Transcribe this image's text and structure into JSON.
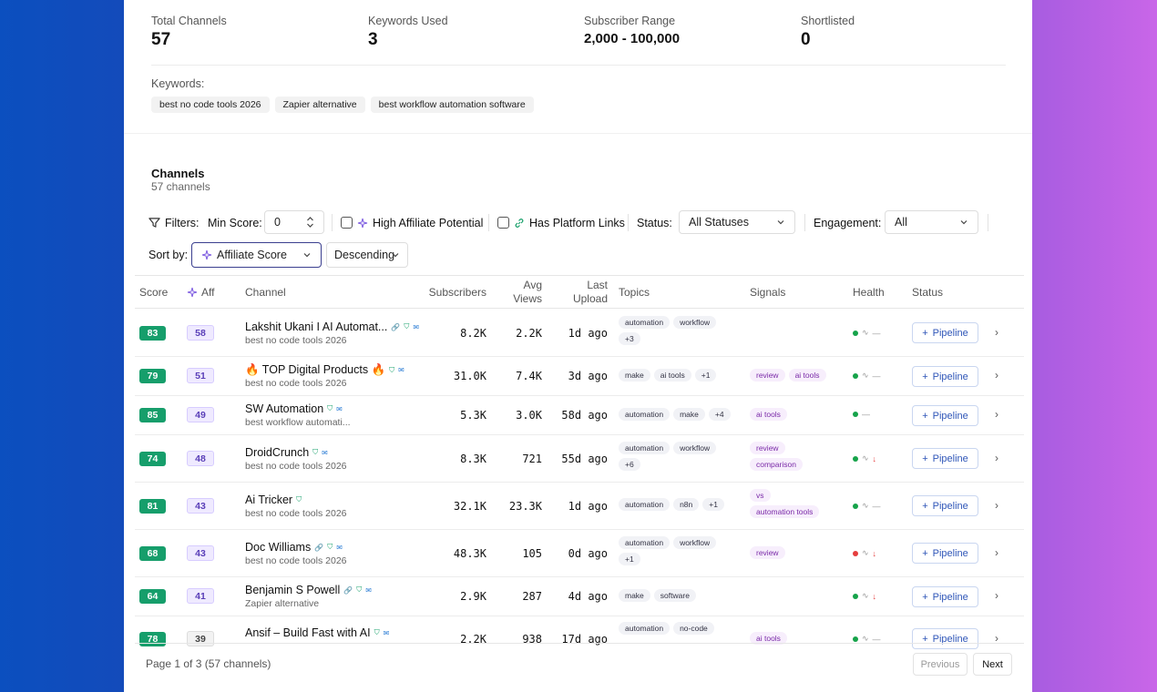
{
  "stats": [
    {
      "label": "Total Channels",
      "value": "57"
    },
    {
      "label": "Keywords Used",
      "value": "3"
    },
    {
      "label": "Subscriber Range",
      "value": "2,000 - 100,000"
    },
    {
      "label": "Shortlisted",
      "value": "0"
    }
  ],
  "keywords": {
    "label": "Keywords:",
    "items": [
      "best no code tools 2026",
      "Zapier alternative",
      "best workflow automation software"
    ]
  },
  "channels": {
    "title": "Channels",
    "subtitle": "57 channels"
  },
  "filters": {
    "label": "Filters:",
    "min_score_label": "Min Score:",
    "min_score_value": "0",
    "high_affiliate_label": "High Affiliate Potential",
    "platform_links_label": "Has Platform Links",
    "status_label": "Status:",
    "status_value": "All Statuses",
    "engagement_label": "Engagement:",
    "engagement_value": "All",
    "sort_label": "Sort by:",
    "sort_value": "Affiliate Score",
    "order_value": "Descending"
  },
  "columns": {
    "score": "Score",
    "aff": "Aff",
    "channel": "Channel",
    "subscribers": "Subscribers",
    "avg_views_1": "Avg",
    "avg_views_2": "Views",
    "last_upload_1": "Last",
    "last_upload_2": "Upload",
    "topics": "Topics",
    "signals": "Signals",
    "health": "Health",
    "status": "Status"
  },
  "pipeline_label": "Pipeline",
  "rows": [
    {
      "score": "83",
      "aff": "58",
      "name": "Lakshit Ukani I AI Automat...",
      "keyword": "best no code tools 2026",
      "subs": "8.2K",
      "views": "2.2K",
      "upload": "1d ago",
      "topics": [
        "automation",
        "workflow",
        "+3"
      ],
      "signals": [],
      "health": "—",
      "health_dot": "green"
    },
    {
      "score": "79",
      "aff": "51",
      "name": "🔥 TOP Digital Products 🔥",
      "keyword": "best no code tools 2026",
      "subs": "31.0K",
      "views": "7.4K",
      "upload": "3d ago",
      "topics": [
        "make",
        "ai tools",
        "+1"
      ],
      "signals": [
        "review",
        "ai tools"
      ],
      "health": "—",
      "health_dot": "green"
    },
    {
      "score": "85",
      "aff": "49",
      "name": "SW Automation",
      "keyword": "best workflow automati...",
      "subs": "5.3K",
      "views": "3.0K",
      "upload": "58d ago",
      "topics": [
        "automation",
        "make",
        "+4"
      ],
      "signals": [
        "ai tools"
      ],
      "health": "—",
      "health_dot": "green"
    },
    {
      "score": "74",
      "aff": "48",
      "name": "DroidCrunch",
      "keyword": "best no code tools 2026",
      "subs": "8.3K",
      "views": "721",
      "upload": "55d ago",
      "topics": [
        "automation",
        "workflow",
        "+6"
      ],
      "signals": [
        "review",
        "comparison"
      ],
      "health": "↓",
      "health_dot": "green"
    },
    {
      "score": "81",
      "aff": "43",
      "name": "Ai Tricker",
      "keyword": "best no code tools 2026",
      "subs": "32.1K",
      "views": "23.3K",
      "upload": "1d ago",
      "topics": [
        "automation",
        "n8n",
        "+1"
      ],
      "signals": [
        "vs",
        "automation tools"
      ],
      "health": "—",
      "health_dot": "green"
    },
    {
      "score": "68",
      "aff": "43",
      "name": "Doc Williams",
      "keyword": "best no code tools 2026",
      "subs": "48.3K",
      "views": "105",
      "upload": "0d ago",
      "topics": [
        "automation",
        "workflow",
        "+1"
      ],
      "signals": [
        "review"
      ],
      "health": "↓",
      "health_dot": "red"
    },
    {
      "score": "64",
      "aff": "41",
      "name": "Benjamin S Powell",
      "keyword": "Zapier alternative",
      "subs": "2.9K",
      "views": "287",
      "upload": "4d ago",
      "topics": [
        "make",
        "software"
      ],
      "signals": [],
      "health": "↓",
      "health_dot": "green"
    },
    {
      "score": "78",
      "aff": "39",
      "name": "Ansif – Build Fast with AI",
      "keyword": "",
      "subs": "2.2K",
      "views": "938",
      "upload": "17d ago",
      "topics": [
        "automation",
        "no-code"
      ],
      "signals": [
        "ai tools"
      ],
      "health": "—",
      "health_dot": "green"
    }
  ],
  "pagination": {
    "info": "Page 1 of 3 (57 channels)",
    "previous": "Previous",
    "next": "Next"
  }
}
